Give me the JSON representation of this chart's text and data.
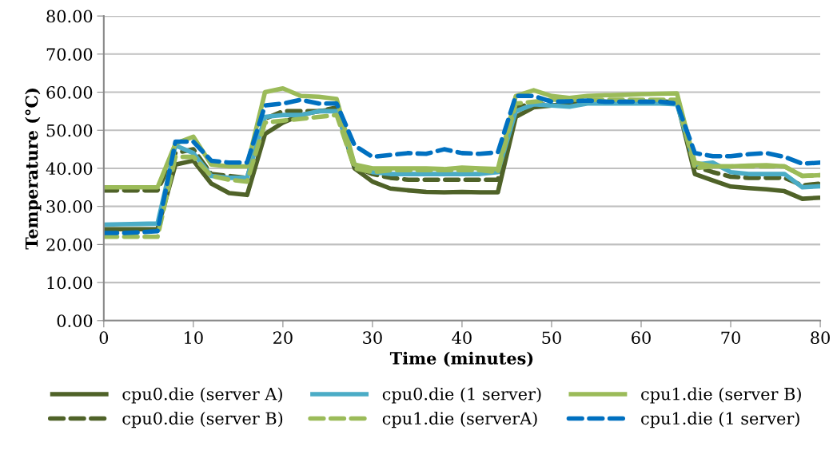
{
  "chart_data": {
    "type": "line",
    "xlabel": "Time (minutes)",
    "ylabel": "Temperature (°C)",
    "x": [
      0,
      2,
      4,
      6,
      8,
      10,
      12,
      14,
      16,
      18,
      20,
      22,
      24,
      26,
      28,
      30,
      32,
      34,
      36,
      38,
      40,
      42,
      44,
      46,
      48,
      50,
      52,
      54,
      56,
      58,
      60,
      62,
      64,
      66,
      68,
      70,
      72,
      74,
      76,
      78,
      80
    ],
    "xlim": [
      0,
      80
    ],
    "xticks": [
      0,
      10,
      20,
      30,
      40,
      50,
      60,
      70,
      80
    ],
    "ylim": [
      0,
      80
    ],
    "yticks": [
      {
        "value": 0,
        "label": "0.00"
      },
      {
        "value": 10,
        "label": "10.00"
      },
      {
        "value": 20,
        "label": "20.00"
      },
      {
        "value": 30,
        "label": "30.00"
      },
      {
        "value": 40,
        "label": "40.00"
      },
      {
        "value": 50,
        "label": "50.00"
      },
      {
        "value": 60,
        "label": "60.00"
      },
      {
        "value": 70,
        "label": "70.00"
      },
      {
        "value": 80,
        "label": "80.00"
      }
    ],
    "grid": "y",
    "legend": "bottom",
    "marker": "none",
    "series": [
      {
        "name": "cpu0.die (server A)",
        "color": "#4f6228",
        "line_style": "solid",
        "values": [
          24,
          24,
          24,
          24,
          41,
          42,
          36,
          33.5,
          33,
          49,
          52,
          54,
          55,
          55.5,
          40,
          36.5,
          34.7,
          34.2,
          33.8,
          33.7,
          33.8,
          33.7,
          33.7,
          53.5,
          56,
          56.5,
          57,
          57.5,
          57.5,
          57.5,
          57.5,
          57.5,
          57.5,
          38.5,
          36.8,
          35.2,
          34.8,
          34.5,
          34,
          32,
          32.3
        ]
      },
      {
        "name": "cpu0.die (server B)",
        "color": "#4f6228",
        "line_style": "dashed",
        "values": [
          34.2,
          34.2,
          34.2,
          34.2,
          44,
          45,
          38.5,
          38,
          37.5,
          53,
          55,
          55,
          55,
          56,
          40.5,
          38.5,
          37.5,
          37,
          37,
          37,
          37,
          37,
          37,
          56,
          57,
          56.5,
          57,
          57.5,
          57.5,
          57.5,
          57.5,
          57.5,
          57.5,
          40.5,
          39,
          37.8,
          37.5,
          37.5,
          37.5,
          35.5,
          36
        ]
      },
      {
        "name": "cpu0.die (1 server)",
        "color": "#4bacc6",
        "line_style": "solid",
        "values": [
          25.2,
          25.3,
          25.4,
          25.5,
          46,
          44,
          38,
          37.5,
          37.5,
          53.5,
          54,
          54,
          55,
          55,
          41,
          39,
          38.5,
          38.5,
          38.5,
          38.5,
          38.5,
          38.5,
          39,
          55,
          56.8,
          56.5,
          56.2,
          57,
          57,
          57,
          57,
          57,
          56.8,
          41,
          41.5,
          39,
          38.5,
          38.5,
          38.5,
          35,
          35.3
        ]
      },
      {
        "name": "cpu1.die (serverA)",
        "color": "#9bbb59",
        "line_style": "dashed",
        "values": [
          22,
          22,
          22,
          22,
          43,
          43,
          38,
          37,
          36.5,
          52,
          52.5,
          53,
          53.5,
          54,
          40,
          39,
          39.5,
          39.5,
          39.5,
          39.5,
          39.5,
          39.5,
          39,
          57,
          57.5,
          58,
          58,
          58,
          58,
          58,
          58,
          58,
          58,
          40,
          40.5,
          40.5,
          40.5,
          40.5,
          40.5,
          38,
          38.2
        ]
      },
      {
        "name": "cpu1.die (server B)",
        "color": "#9bbb59",
        "line_style": "solid",
        "values": [
          35,
          35,
          35,
          35,
          46.5,
          48.3,
          41,
          40.5,
          40.5,
          60,
          61,
          59,
          58.8,
          58.2,
          41,
          40,
          40,
          40,
          40,
          39.8,
          40.2,
          40,
          39.8,
          59,
          60.5,
          59,
          58.5,
          59,
          59.2,
          59.3,
          59.5,
          59.6,
          59.7,
          41.5,
          40.5,
          40.5,
          40.7,
          40.8,
          40.5,
          38,
          38.2
        ]
      },
      {
        "name": "cpu1.die (1 server)",
        "color": "#0070c0",
        "line_style": "dashed",
        "values": [
          23,
          23,
          23.2,
          23.5,
          47,
          47,
          42,
          41.5,
          41.5,
          56.5,
          57,
          58,
          57,
          57,
          46,
          43,
          43.5,
          44,
          43.8,
          45,
          44,
          43.8,
          44.2,
          59,
          59,
          57.5,
          57.6,
          57.8,
          57.5,
          57.5,
          57.5,
          57.5,
          57,
          44,
          43.2,
          43.2,
          43.7,
          44,
          43,
          41.2,
          41.5
        ]
      }
    ]
  }
}
